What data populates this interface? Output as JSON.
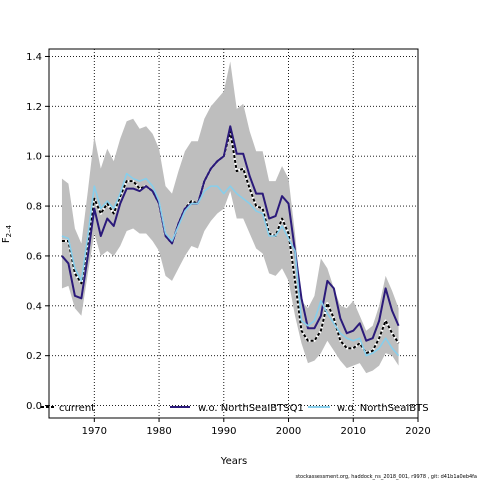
{
  "chart_data": {
    "type": "line",
    "xlabel": "Years",
    "ylabel_main": "F",
    "ylabel_sub": "2–4",
    "xlim": [
      1963,
      2020
    ],
    "ylim": [
      -0.05,
      1.43
    ],
    "xticks": [
      "1970",
      "1980",
      "1990",
      "2000",
      "2010",
      "2020"
    ],
    "yticks": [
      "0.0",
      "0.2",
      "0.4",
      "0.6",
      "0.8",
      "1.0",
      "1.2",
      "1.4"
    ],
    "grid": true,
    "legend_position": "bottom",
    "footer": "stockassessment.org, haddock_ns_2018_001, r9978 , git: d41b1a0eb4fa",
    "band": {
      "color": "#bebebe",
      "x": [
        1965,
        1966,
        1967,
        1968,
        1969,
        1970,
        1971,
        1972,
        1973,
        1974,
        1975,
        1976,
        1977,
        1978,
        1979,
        1980,
        1981,
        1982,
        1983,
        1984,
        1985,
        1986,
        1987,
        1988,
        1989,
        1990,
        1991,
        1992,
        1993,
        1994,
        1995,
        1996,
        1997,
        1998,
        1999,
        2000,
        2001,
        2002,
        2003,
        2004,
        2005,
        2006,
        2007,
        2008,
        2009,
        2010,
        2011,
        2012,
        2013,
        2014,
        2015,
        2016,
        2017
      ],
      "upper": [
        0.91,
        0.89,
        0.71,
        0.65,
        0.86,
        1.08,
        0.95,
        1.03,
        0.98,
        1.07,
        1.14,
        1.15,
        1.11,
        1.12,
        1.09,
        1.03,
        0.88,
        0.85,
        0.94,
        1.02,
        1.06,
        1.06,
        1.15,
        1.2,
        1.23,
        1.26,
        1.38,
        1.19,
        1.21,
        1.1,
        1.02,
        1.02,
        0.9,
        0.9,
        0.96,
        0.91,
        0.69,
        0.42,
        0.39,
        0.44,
        0.59,
        0.55,
        0.47,
        0.4,
        0.39,
        0.42,
        0.36,
        0.3,
        0.32,
        0.4,
        0.52,
        0.46,
        0.39
      ],
      "lower": [
        0.47,
        0.48,
        0.39,
        0.36,
        0.53,
        0.69,
        0.6,
        0.62,
        0.6,
        0.64,
        0.7,
        0.71,
        0.69,
        0.69,
        0.66,
        0.62,
        0.52,
        0.5,
        0.55,
        0.6,
        0.64,
        0.63,
        0.7,
        0.74,
        0.77,
        0.79,
        0.86,
        0.75,
        0.75,
        0.69,
        0.63,
        0.61,
        0.53,
        0.52,
        0.55,
        0.5,
        0.36,
        0.25,
        0.17,
        0.18,
        0.21,
        0.26,
        0.22,
        0.18,
        0.15,
        0.16,
        0.17,
        0.13,
        0.14,
        0.16,
        0.21,
        0.2,
        0.16
      ]
    },
    "series": [
      {
        "name": "current",
        "color": "#000000",
        "style": "dashed",
        "x": [
          1965,
          1966,
          1967,
          1968,
          1969,
          1970,
          1971,
          1972,
          1973,
          1974,
          1975,
          1976,
          1977,
          1978,
          1979,
          1980,
          1981,
          1982,
          1983,
          1984,
          1985,
          1986,
          1987,
          1988,
          1989,
          1990,
          1991,
          1992,
          1993,
          1994,
          1995,
          1996,
          1997,
          1998,
          1999,
          2000,
          2001,
          2002,
          2003,
          2004,
          2005,
          2006,
          2007,
          2008,
          2009,
          2010,
          2011,
          2012,
          2013,
          2014,
          2015,
          2016,
          2017
        ],
        "values": [
          0.66,
          0.66,
          0.53,
          0.49,
          0.66,
          0.83,
          0.77,
          0.81,
          0.77,
          0.84,
          0.9,
          0.9,
          0.87,
          0.88,
          0.86,
          0.81,
          0.68,
          0.65,
          0.73,
          0.79,
          0.82,
          0.81,
          0.9,
          0.95,
          0.98,
          1.0,
          1.1,
          0.94,
          0.95,
          0.87,
          0.8,
          0.79,
          0.69,
          0.68,
          0.75,
          0.69,
          0.5,
          0.3,
          0.26,
          0.26,
          0.3,
          0.41,
          0.35,
          0.26,
          0.23,
          0.23,
          0.25,
          0.21,
          0.22,
          0.27,
          0.34,
          0.29,
          0.25
        ]
      },
      {
        "name": "w.o. NorthSeaIBTSQ1",
        "color": "#2b1a7a",
        "style": "solid",
        "x": [
          1965,
          1966,
          1967,
          1968,
          1969,
          1970,
          1971,
          1972,
          1973,
          1974,
          1975,
          1976,
          1977,
          1978,
          1979,
          1980,
          1981,
          1982,
          1983,
          1984,
          1985,
          1986,
          1987,
          1988,
          1989,
          1990,
          1991,
          1992,
          1993,
          1994,
          1995,
          1996,
          1997,
          1998,
          1999,
          2000,
          2001,
          2002,
          2003,
          2004,
          2005,
          2006,
          2007,
          2008,
          2009,
          2010,
          2011,
          2012,
          2013,
          2014,
          2015,
          2016,
          2017
        ],
        "values": [
          0.6,
          0.57,
          0.44,
          0.43,
          0.6,
          0.79,
          0.68,
          0.75,
          0.72,
          0.81,
          0.87,
          0.87,
          0.86,
          0.88,
          0.86,
          0.81,
          0.68,
          0.65,
          0.73,
          0.79,
          0.81,
          0.81,
          0.9,
          0.95,
          0.98,
          1.0,
          1.12,
          1.01,
          1.01,
          0.92,
          0.85,
          0.85,
          0.75,
          0.76,
          0.84,
          0.81,
          0.62,
          0.43,
          0.31,
          0.31,
          0.36,
          0.5,
          0.47,
          0.35,
          0.29,
          0.3,
          0.33,
          0.26,
          0.27,
          0.34,
          0.47,
          0.38,
          0.32
        ]
      },
      {
        "name": "w.o. NorthSeaIBTS",
        "color": "#87ceeb",
        "style": "solid",
        "x": [
          1965,
          1966,
          1967,
          1968,
          1969,
          1970,
          1971,
          1972,
          1973,
          1974,
          1975,
          1976,
          1977,
          1978,
          1979,
          1980,
          1981,
          1982,
          1983,
          1984,
          1985,
          1986,
          1987,
          1988,
          1989,
          1990,
          1991,
          1992,
          1993,
          1994,
          1995,
          1996,
          1997,
          1998,
          1999,
          2000,
          2001,
          2002,
          2003,
          2004,
          2005,
          2006,
          2007,
          2008,
          2009,
          2010,
          2011,
          2012,
          2013,
          2014,
          2015,
          2016,
          2017
        ],
        "values": [
          0.68,
          0.67,
          0.55,
          0.5,
          0.68,
          0.88,
          0.79,
          0.82,
          0.79,
          0.85,
          0.93,
          0.91,
          0.9,
          0.91,
          0.88,
          0.82,
          0.69,
          0.66,
          0.72,
          0.78,
          0.81,
          0.81,
          0.86,
          0.88,
          0.88,
          0.85,
          0.88,
          0.85,
          0.83,
          0.81,
          0.78,
          0.77,
          0.68,
          0.68,
          0.72,
          0.67,
          0.62,
          0.34,
          0.32,
          0.34,
          0.42,
          0.37,
          0.33,
          0.29,
          0.27,
          0.26,
          0.27,
          0.2,
          0.21,
          0.23,
          0.27,
          0.23,
          0.2
        ]
      }
    ]
  }
}
